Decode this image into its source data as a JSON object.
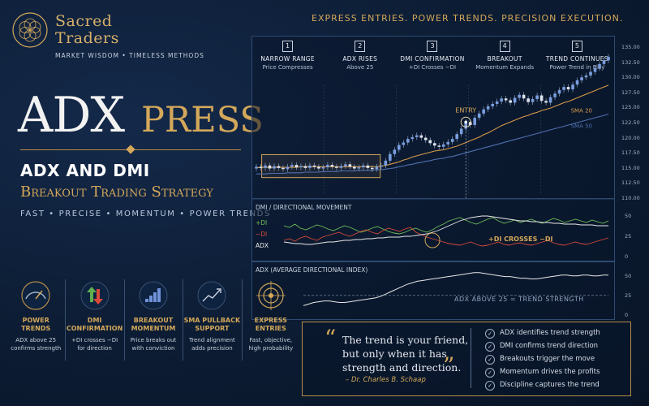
{
  "brand": {
    "line1": "Sacred",
    "line2": "Traders",
    "tagline": "MARKET WISDOM  •  TIMELESS METHODS"
  },
  "banner": "EXPRESS ENTRIES. POWER TRENDS. PRECISION EXECUTION.",
  "hero": {
    "adx": "ADX",
    "press": "PRESS",
    "subtitle": "ADX AND DMI",
    "strategy": "Breakout Trading Strategy",
    "keywords": "FAST  •  PRECISE  •  MOMENTUM  •  POWER TRENDS"
  },
  "steps": [
    {
      "num": "1",
      "title": "NARROW RANGE",
      "sub": "Price Compresses"
    },
    {
      "num": "2",
      "title": "ADX RISES",
      "sub": "Above 25"
    },
    {
      "num": "3",
      "title": "DMI CONFIRMATION",
      "sub": "+DI Crosses −DI"
    },
    {
      "num": "4",
      "title": "BREAKOUT",
      "sub": "Momentum Expands"
    },
    {
      "num": "5",
      "title": "TREND CONTINUES",
      "sub": "Power Trend in Play"
    }
  ],
  "chart_data": [
    {
      "type": "line",
      "title": "",
      "ylim": [
        110,
        135
      ],
      "yticks": [
        "135.00",
        "132.50",
        "130.00",
        "127.50",
        "125.00",
        "122.50",
        "120.00",
        "117.50",
        "115.00",
        "112.50",
        "110.00"
      ],
      "x": [
        0,
        1,
        2,
        3,
        4,
        5,
        6,
        7,
        8,
        9,
        10,
        11,
        12,
        13,
        14,
        15,
        16,
        17,
        18,
        19,
        20,
        21,
        22,
        23,
        24,
        25,
        26,
        27,
        28,
        29,
        30,
        31,
        32,
        33,
        34,
        35,
        36,
        37,
        38,
        39,
        40,
        41,
        42,
        43,
        44,
        45,
        46,
        47,
        48,
        49,
        50,
        51,
        52,
        53,
        54,
        55,
        56,
        57,
        58,
        59,
        60,
        61,
        62,
        63,
        64,
        65,
        66,
        67,
        68,
        69,
        70,
        71,
        72,
        73,
        74,
        75,
        76,
        77,
        78,
        79
      ],
      "series": [
        {
          "name": "",
          "kind": "candles",
          "values": [
            115.2,
            115.0,
            115.4,
            114.9,
            115.3,
            115.0,
            114.8,
            115.2,
            115.5,
            115.1,
            115.3,
            115.0,
            115.4,
            115.2,
            114.9,
            115.1,
            115.5,
            115.2,
            115.0,
            115.3,
            115.6,
            115.2,
            114.9,
            115.1,
            115.4,
            115.0,
            114.8,
            115.2,
            115.4,
            116.2,
            117.3,
            118.0,
            118.8,
            119.2,
            119.8,
            120.1,
            120.4,
            120.0,
            119.6,
            119.1,
            118.7,
            118.5,
            118.9,
            119.3,
            119.8,
            120.6,
            121.5,
            122.6,
            122.1,
            123.3,
            124.0,
            124.7,
            125.2,
            125.6,
            126.0,
            126.5,
            126.2,
            125.8,
            126.6,
            127.1,
            126.5,
            125.9,
            126.4,
            127.0,
            126.1,
            125.8,
            126.7,
            127.3,
            127.9,
            128.4,
            128.0,
            128.8,
            129.5,
            130.0,
            130.3,
            130.9,
            131.5,
            132.2,
            132.8,
            133.4
          ]
        },
        {
          "name": "SMA 20",
          "color": "#d89a4a",
          "values": [
            115.0,
            115.1,
            115.1,
            115.1,
            115.1,
            115.1,
            115.1,
            115.1,
            115.1,
            115.1,
            115.2,
            115.2,
            115.2,
            115.2,
            115.2,
            115.2,
            115.2,
            115.2,
            115.2,
            115.2,
            115.2,
            115.2,
            115.2,
            115.2,
            115.2,
            115.2,
            115.2,
            115.2,
            115.3,
            115.4,
            115.6,
            115.8,
            116.0,
            116.3,
            116.5,
            116.8,
            117.0,
            117.2,
            117.4,
            117.6,
            117.8,
            117.9,
            118.0,
            118.2,
            118.4,
            118.6,
            118.9,
            119.2,
            119.5,
            119.8,
            120.1,
            120.5,
            120.8,
            121.2,
            121.6,
            122.0,
            122.3,
            122.6,
            122.9,
            123.2,
            123.5,
            123.7,
            124.0,
            124.2,
            124.5,
            124.7,
            124.9,
            125.2,
            125.5,
            125.8,
            126.0,
            126.3,
            126.6,
            126.9,
            127.2,
            127.5,
            127.8,
            128.1,
            128.4,
            128.7
          ]
        },
        {
          "name": "SMA 50",
          "color": "#4f6fae",
          "values": [
            114.0,
            114.0,
            114.0,
            114.1,
            114.1,
            114.1,
            114.1,
            114.2,
            114.2,
            114.2,
            114.2,
            114.3,
            114.3,
            114.3,
            114.3,
            114.4,
            114.4,
            114.4,
            114.4,
            114.5,
            114.5,
            114.5,
            114.5,
            114.6,
            114.6,
            114.6,
            114.6,
            114.7,
            114.7,
            114.8,
            114.9,
            115.0,
            115.2,
            115.3,
            115.5,
            115.6,
            115.8,
            115.9,
            116.1,
            116.2,
            116.4,
            116.5,
            116.6,
            116.8,
            116.9,
            117.1,
            117.3,
            117.5,
            117.7,
            117.9,
            118.1,
            118.3,
            118.5,
            118.7,
            118.9,
            119.1,
            119.3,
            119.5,
            119.7,
            119.9,
            120.1,
            120.3,
            120.5,
            120.7,
            120.9,
            121.1,
            121.3,
            121.5,
            121.7,
            121.9,
            122.1,
            122.3,
            122.5,
            122.7,
            122.9,
            123.1,
            123.3,
            123.5,
            123.7,
            123.9
          ]
        }
      ],
      "annotations": {
        "entry": "ENTRY",
        "sma20": "SMA 20",
        "sma50": "SMA 50"
      }
    },
    {
      "type": "line",
      "title": "DMI / DIRECTIONAL MOVEMENT",
      "ylim": [
        0,
        60
      ],
      "yticks": [
        "50",
        "25",
        "0"
      ],
      "series": [
        {
          "name": "+DI",
          "color": "#6fbf5a",
          "values": [
            38,
            36,
            40,
            35,
            33,
            36,
            39,
            37,
            34,
            32,
            35,
            38,
            36,
            33,
            30,
            32,
            35,
            37,
            34,
            31,
            29,
            28,
            30,
            33,
            35,
            32,
            30,
            33,
            37,
            40,
            44,
            46,
            48,
            45,
            42,
            40,
            43,
            46,
            48,
            44,
            41,
            43,
            45,
            42,
            44,
            46,
            43,
            41,
            44,
            47,
            45,
            42,
            44,
            46,
            44,
            42,
            45,
            43,
            41,
            44
          ]
        },
        {
          "name": "−DI",
          "color": "#d94a3a",
          "values": [
            20,
            22,
            19,
            23,
            25,
            22,
            20,
            24,
            26,
            28,
            30,
            27,
            25,
            28,
            31,
            33,
            30,
            28,
            32,
            35,
            33,
            31,
            34,
            36,
            30,
            27,
            24,
            22,
            20,
            18,
            16,
            15,
            14,
            16,
            18,
            15,
            13,
            14,
            16,
            18,
            15,
            14,
            16,
            17,
            15,
            14,
            16,
            18,
            20,
            17,
            15,
            14,
            16,
            18,
            16,
            15,
            17,
            19,
            21,
            23
          ]
        },
        {
          "name": "ADX",
          "color": "#e8e8e8",
          "values": [
            18,
            17,
            16,
            16,
            15,
            15,
            16,
            17,
            18,
            18,
            19,
            20,
            20,
            21,
            21,
            22,
            22,
            23,
            23,
            24,
            24,
            24,
            25,
            25,
            26,
            27,
            28,
            30,
            32,
            35,
            38,
            41,
            44,
            46,
            48,
            49,
            50,
            50,
            49,
            48,
            47,
            46,
            45,
            44,
            44,
            43,
            43,
            42,
            42,
            41,
            41,
            40,
            40,
            40,
            39,
            39,
            39,
            38,
            38,
            38
          ]
        }
      ],
      "annotations": {
        "cross": "+DI CROSSES −DI"
      }
    },
    {
      "type": "line",
      "title": "ADX (AVERAGE DIRECTIONAL INDEX)",
      "ylim": [
        0,
        60
      ],
      "yticks": [
        "50",
        "25",
        "0"
      ],
      "threshold": 25,
      "series": [
        {
          "name": "ADX",
          "color": "#e8e8e8",
          "values": [
            12,
            14,
            16,
            17,
            18,
            18,
            17,
            16,
            16,
            17,
            18,
            19,
            20,
            21,
            22,
            24,
            27,
            30,
            33,
            36,
            39,
            41,
            43,
            44,
            45,
            46,
            47,
            48,
            49,
            50,
            51,
            52,
            53,
            54,
            54,
            53,
            52,
            51,
            50,
            49,
            49,
            48,
            47,
            47,
            46,
            46,
            47,
            48,
            49,
            50,
            51,
            51,
            50,
            50,
            51,
            51,
            50,
            50,
            51,
            51
          ]
        }
      ],
      "annotations": {
        "threshold": "ADX ABOVE 25 = TREND STRENGTH"
      }
    }
  ],
  "features": [
    {
      "icon": "gauge-icon",
      "title": "POWER\nTRENDS",
      "desc": "ADX above 25\nconfirms strength"
    },
    {
      "icon": "arrows-icon",
      "title": "DMI\nCONFIRMATION",
      "desc": "+DI crosses −DI\nfor direction"
    },
    {
      "icon": "bars-icon",
      "title": "BREAKOUT\nMOMENTUM",
      "desc": "Price breaks out\nwith conviction"
    },
    {
      "icon": "trend-icon",
      "title": "SMA PULLBACK\nSUPPORT",
      "desc": "Trend alignment\nadds precision"
    },
    {
      "icon": "target-icon",
      "title": "EXPRESS\nENTRIES",
      "desc": "Fast, objective,\nhigh probability"
    }
  ],
  "quote": {
    "open": "“",
    "close": "”",
    "line1": "The trend is your friend,",
    "line2": "but only when it has",
    "line3": "strength and direction.",
    "author": "– Dr. Charles B. Schaap"
  },
  "checklist": [
    "ADX identifies trend strength",
    "DMI confirms trend direction",
    "Breakouts trigger the move",
    "Momentum drives the profits",
    "Discipline captures the trend"
  ],
  "colors": {
    "gold": "#d4a85a",
    "bg": "#0c1c33",
    "up": "#7a9ee0",
    "down": "#e0e6ee"
  }
}
